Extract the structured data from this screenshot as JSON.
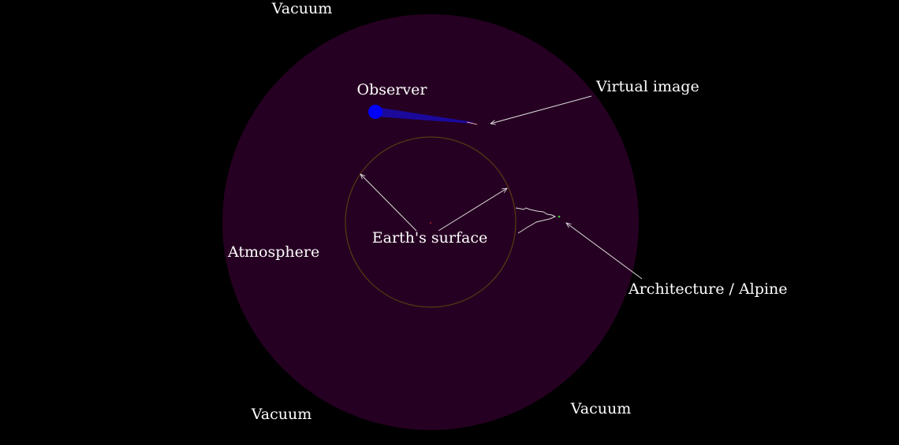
{
  "labels": {
    "vacuum_top": "Vacuum",
    "vacuum_bottom_left": "Vacuum",
    "vacuum_bottom_right": "Vacuum",
    "observer": "Observer",
    "virtual_image": "Virtual image",
    "earth_surface": "Earth's surface",
    "atmosphere": "Atmosphere",
    "architecture": "Architecture / Alpine"
  },
  "colors": {
    "background": "#000000",
    "atmosphere": "#260022",
    "earth_outline": "#5a3a12",
    "observer": "#0000ff",
    "sight_beam": "#1a0ab0",
    "annotation": "#dcdcdc",
    "label": "#ffffff"
  }
}
